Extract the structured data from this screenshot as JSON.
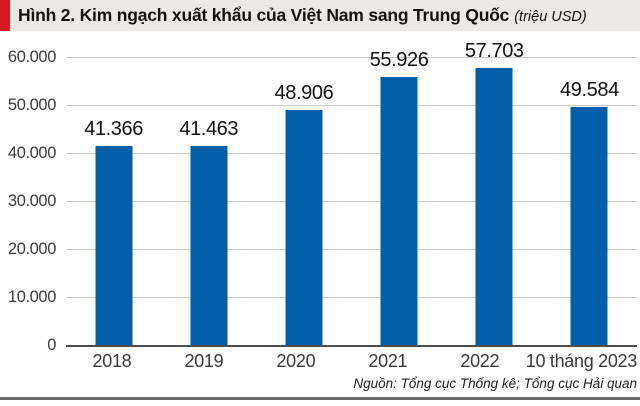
{
  "header": {
    "title": "Hình 2. Kim ngạch xuất khẩu của Việt Nam sang Trung Quốc",
    "unit": "(triệu USD)",
    "accent_color": "#d71920",
    "background_color": "#ebe8e5"
  },
  "chart_data": {
    "type": "bar",
    "title": "Kim ngạch xuất khẩu của Việt Nam sang Trung Quốc",
    "unit": "triệu USD",
    "categories": [
      "2018",
      "2019",
      "2020",
      "2021",
      "2022",
      "10 tháng 2023"
    ],
    "values": [
      41366,
      41463,
      48906,
      55926,
      57703,
      49584
    ],
    "value_labels": [
      "41.366",
      "41.463",
      "48.906",
      "55.926",
      "57.703",
      "49.584"
    ],
    "ytick_labels": [
      "60.000",
      "50.000",
      "40.000",
      "30.000",
      "20.000",
      "10.000",
      "0"
    ],
    "ytick_values": [
      60000,
      50000,
      40000,
      30000,
      20000,
      10000,
      0
    ],
    "ylim": [
      0,
      60000
    ],
    "grid": true,
    "legend": false,
    "bar_color": "#005fa8",
    "gridline_color": "#c9c9c9",
    "axis_color": "#4d4d4d"
  },
  "footer": {
    "source": "Nguồn: Tổng cục Thống kê; Tổng cục Hải quan"
  }
}
